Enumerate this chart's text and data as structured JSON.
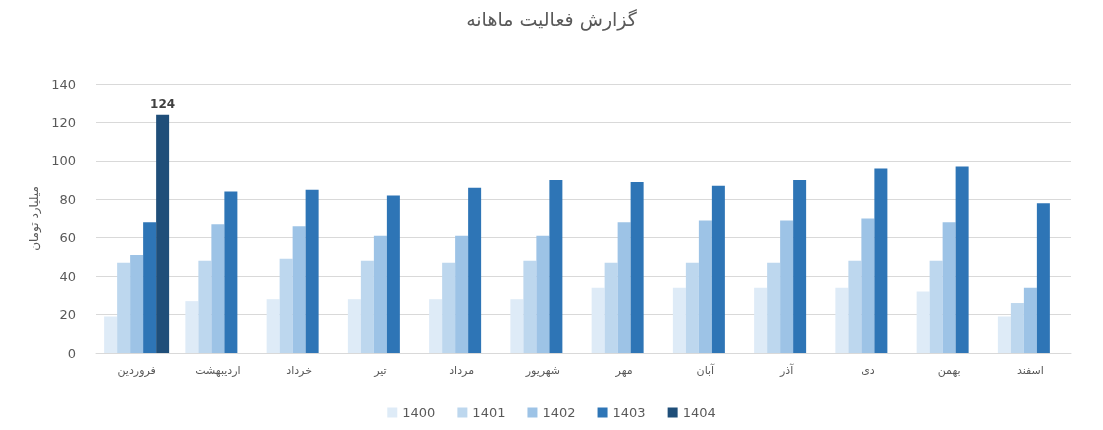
{
  "chart_data": {
    "type": "bar",
    "title": "گزارش فعالیت ماهانه",
    "ylabel": "میلیارد تومان",
    "categories": [
      "فروردین",
      "اردیبهشت",
      "خرداد",
      "تیر",
      "مرداد",
      "شهریور",
      "مهر",
      "آبان",
      "آذر",
      "دی",
      "بهمن",
      "اسفند"
    ],
    "series": [
      {
        "name": "1400",
        "color": "#deebf7",
        "values": [
          19,
          27,
          28,
          28,
          28,
          28,
          34,
          34,
          34,
          34,
          32,
          19
        ]
      },
      {
        "name": "1401",
        "color": "#bdd7ee",
        "values": [
          47,
          48,
          49,
          48,
          47,
          48,
          47,
          47,
          47,
          48,
          48,
          26
        ]
      },
      {
        "name": "1402",
        "color": "#9dc3e6",
        "values": [
          51,
          67,
          66,
          61,
          61,
          61,
          68,
          69,
          69,
          70,
          68,
          34
        ]
      },
      {
        "name": "1403",
        "color": "#2e75b6",
        "values": [
          68,
          84,
          85,
          82,
          86,
          90,
          89,
          87,
          90,
          96,
          97,
          78
        ]
      },
      {
        "name": "1404",
        "color": "#1f4e79",
        "values": [
          124,
          null,
          null,
          null,
          null,
          null,
          null,
          null,
          null,
          null,
          null,
          null
        ],
        "value_labels": [
          "124",
          null,
          null,
          null,
          null,
          null,
          null,
          null,
          null,
          null,
          null,
          null
        ]
      }
    ],
    "ylim": [
      0,
      140
    ],
    "yticks": [
      0,
      20,
      40,
      60,
      80,
      100,
      120,
      140
    ],
    "grid": "y",
    "legend": "bottom"
  }
}
